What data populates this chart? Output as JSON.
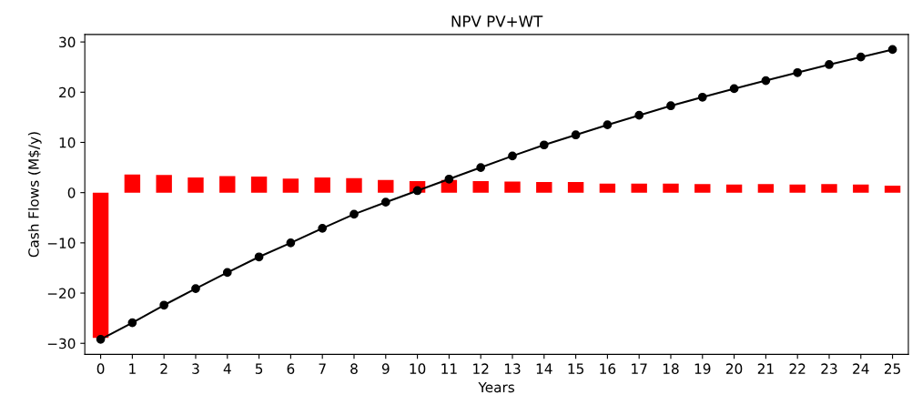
{
  "chart_data": {
    "type": "bar",
    "title": "NPV PV+WT",
    "xlabel": "Years",
    "ylabel": "Cash Flows (M$/y)",
    "categories": [
      "0",
      "1",
      "2",
      "3",
      "4",
      "5",
      "6",
      "7",
      "8",
      "9",
      "10",
      "11",
      "12",
      "13",
      "14",
      "15",
      "16",
      "17",
      "18",
      "19",
      "20",
      "21",
      "22",
      "23",
      "24",
      "25"
    ],
    "series": [
      {
        "color": "#ff0000",
        "values": [
          -28.9,
          3.6,
          3.5,
          3.0,
          3.3,
          3.2,
          2.8,
          3.0,
          2.9,
          2.5,
          2.3,
          2.5,
          2.3,
          2.2,
          2.1,
          2.1,
          1.8,
          1.8,
          1.8,
          1.7,
          1.6,
          1.7,
          1.6,
          1.7,
          1.6,
          1.4
        ]
      },
      {
        "type": "line",
        "color": "#000000",
        "marker": "circle",
        "values": [
          -29.2,
          -25.9,
          -22.4,
          -19.1,
          -15.9,
          -12.8,
          -10.0,
          -7.1,
          -4.3,
          -1.9,
          0.4,
          2.7,
          5.0,
          7.3,
          9.5,
          11.5,
          13.5,
          15.4,
          17.3,
          19.0,
          20.7,
          22.3,
          23.9,
          25.5,
          27.0,
          28.5
        ]
      }
    ],
    "ylim": [
      -32.2,
      31.5
    ],
    "yticks": [
      -30,
      -20,
      -10,
      0,
      10,
      20,
      30
    ],
    "grid": false,
    "legend": false
  }
}
